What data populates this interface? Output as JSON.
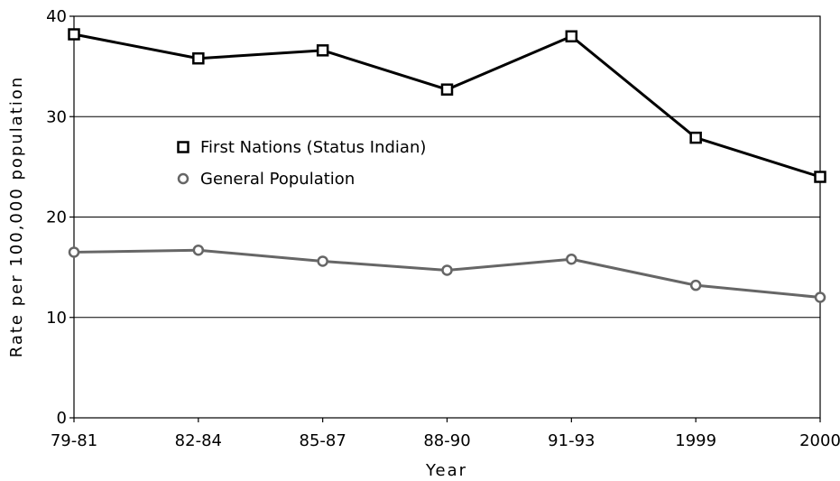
{
  "chart_data": {
    "type": "line",
    "title": "",
    "xlabel": "Year",
    "ylabel": "Rate per 100,000 population",
    "categories": [
      "79-81",
      "82-84",
      "85-87",
      "88-90",
      "91-93",
      "1999",
      "2000"
    ],
    "ylim": [
      0,
      40
    ],
    "yticks": [
      0,
      10,
      20,
      30,
      40
    ],
    "grid": "horizontal",
    "legend_position": "upper-left",
    "series": [
      {
        "name": "First Nations (Status Indian)",
        "marker": "square",
        "color": "#000000",
        "values": [
          38.2,
          35.8,
          36.6,
          32.7,
          38.0,
          27.9,
          24.0
        ]
      },
      {
        "name": "General Population",
        "marker": "circle",
        "color": "#666666",
        "values": [
          16.5,
          16.7,
          15.6,
          14.7,
          15.8,
          13.2,
          12.0
        ]
      }
    ]
  }
}
